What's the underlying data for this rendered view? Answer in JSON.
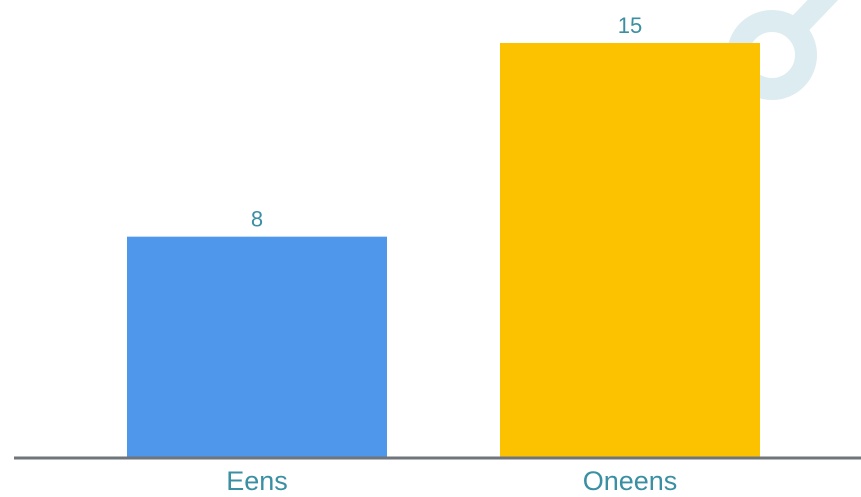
{
  "chart_data": {
    "type": "bar",
    "categories": [
      "Eens",
      "Oneens"
    ],
    "values": [
      8,
      15
    ],
    "bar_colors": [
      "#4e97ea",
      "#fcc200"
    ],
    "label_color": "#3a8fa3",
    "axis_color": "#6f757b",
    "decoration_color": "#dcecf0",
    "ylim": [
      0,
      15
    ],
    "grid": false,
    "legend": "none"
  }
}
